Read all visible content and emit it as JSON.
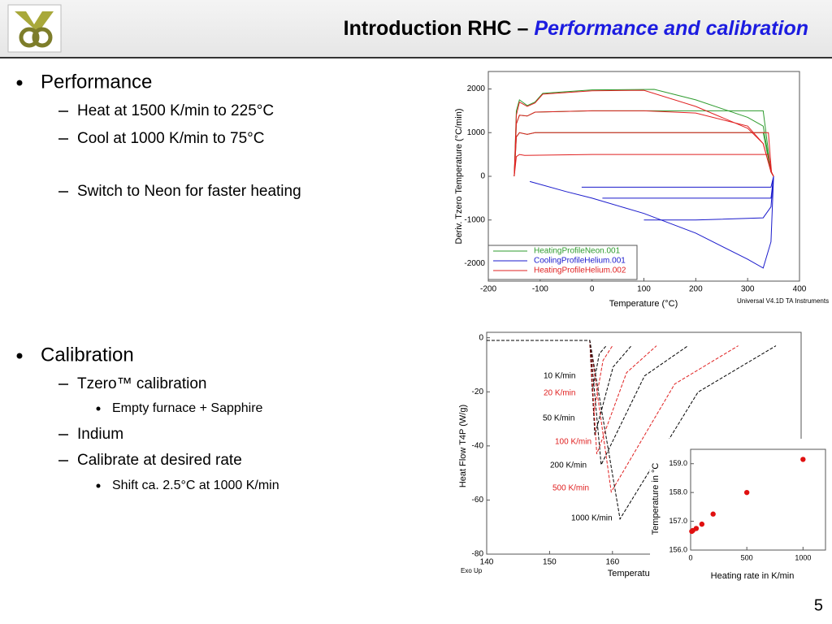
{
  "header": {
    "title": "Introduction RHC – ",
    "title_emphasis": "Performance and calibration"
  },
  "page_number": "5",
  "bullets": [
    {
      "text": "Performance",
      "items": [
        {
          "text": "Heat at 1500 K/min to 225°C"
        },
        {
          "text": "Cool at 1000 K/min to 75°C"
        },
        {
          "text": "Switch to Neon for faster heating"
        }
      ]
    },
    {
      "text": "Calibration",
      "items": [
        {
          "text": "Tzero™ calibration",
          "items": [
            "Empty furnace + Sapphire"
          ]
        },
        {
          "text": "Indium"
        },
        {
          "text": "Calibrate at desired rate",
          "items": [
            "Shift ca. 2.5°C at 1000 K/min"
          ]
        }
      ]
    }
  ],
  "chart_data": [
    {
      "type": "line",
      "ylabel": "Deriv. Tzero Temperature (°C/min)",
      "xlabel": "Temperature (°C)",
      "note": "Universal V4.1D TA Instruments",
      "xlim": [
        -200,
        400
      ],
      "ylim": [
        -2400,
        2400
      ],
      "xticks": [
        -200,
        -100,
        0,
        100,
        200,
        300,
        400
      ],
      "yticks": [
        -2000,
        -1000,
        0,
        1000,
        2000
      ],
      "legend": "lower left",
      "series": [
        {
          "name": "HeatingProfileNeon.001",
          "color": "#2e9b2e",
          "curves": [
            {
              "x": [
                -150,
                -146,
                -140,
                -125,
                -110,
                -95,
                0,
                120,
                200,
                300,
                330,
                345,
                350
              ],
              "values": [
                0,
                1500,
                1750,
                1620,
                1700,
                1900,
                1980,
                1990,
                1750,
                1350,
                1150,
                100,
                0
              ]
            },
            {
              "x": [
                -150,
                -146,
                -140,
                -125,
                -110,
                0,
                100,
                200,
                330,
                345,
                350
              ],
              "values": [
                0,
                1200,
                1400,
                1380,
                1470,
                1500,
                1500,
                1500,
                1500,
                100,
                0
              ]
            },
            {
              "x": [
                -150,
                -146,
                -140,
                -125,
                -110,
                0,
                100,
                200,
                330,
                345,
                350
              ],
              "values": [
                0,
                900,
                1000,
                960,
                1000,
                1000,
                1000,
                1000,
                1000,
                100,
                0
              ]
            }
          ]
        },
        {
          "name": "CoolingProfileHelium.001",
          "color": "#1a1acc",
          "curves": [
            {
              "x": [
                -120,
                -50,
                0,
                100,
                200,
                300,
                330,
                345,
                350
              ],
              "values": [
                -120,
                -350,
                -500,
                -850,
                -1300,
                -1900,
                -2100,
                -1500,
                0
              ]
            },
            {
              "x": [
                100,
                200,
                330,
                345,
                350
              ],
              "values": [
                -1000,
                -1000,
                -950,
                -700,
                0
              ]
            },
            {
              "x": [
                20,
                200,
                345,
                350
              ],
              "values": [
                -500,
                -500,
                -500,
                0
              ]
            },
            {
              "x": [
                -20,
                200,
                345,
                350
              ],
              "values": [
                -250,
                -250,
                -250,
                0
              ]
            }
          ]
        },
        {
          "name": "HeatingProfileHelium.002",
          "color": "#e02020",
          "curves": [
            {
              "x": [
                -150,
                -146,
                -140,
                -125,
                -110,
                -95,
                0,
                100,
                200,
                300,
                330,
                345,
                350
              ],
              "values": [
                0,
                1400,
                1700,
                1600,
                1680,
                1880,
                1960,
                1970,
                1600,
                1100,
                750,
                100,
                0
              ]
            },
            {
              "x": [
                -150,
                -146,
                -140,
                -125,
                -110,
                0,
                100,
                200,
                300,
                330,
                345,
                350
              ],
              "values": [
                0,
                1200,
                1400,
                1380,
                1470,
                1500,
                1500,
                1450,
                1150,
                750,
                100,
                0
              ]
            },
            {
              "x": [
                -150,
                -146,
                -140,
                -125,
                -110,
                0,
                200,
                340,
                346,
                350
              ],
              "values": [
                0,
                900,
                1000,
                960,
                1000,
                1000,
                1000,
                1000,
                100,
                0
              ]
            },
            {
              "x": [
                -150,
                -146,
                -140,
                -130,
                0,
                200,
                340,
                346,
                350
              ],
              "values": [
                0,
                450,
                500,
                480,
                500,
                500,
                500,
                100,
                0
              ]
            }
          ]
        }
      ]
    },
    {
      "type": "line",
      "ylabel": "Heat Flow T4P (W/g)",
      "xlabel": "Temperature (°C)",
      "note": "Exo Up",
      "xlim": [
        140,
        190
      ],
      "ylim": [
        -80,
        2
      ],
      "xticks": [
        140,
        150,
        160
      ],
      "yticks": [
        0,
        -20,
        -40,
        -60,
        -80
      ],
      "dashed": true,
      "series": [
        {
          "name": "10 K/min",
          "color": "#000000",
          "x": [
            140,
            156.4,
            156.8,
            157.9,
            159
          ],
          "values": [
            -1,
            -1,
            -20,
            -6,
            -3
          ]
        },
        {
          "name": "20 K/min",
          "color": "#e02020",
          "x": [
            140,
            156.4,
            157.0,
            158.5,
            160
          ],
          "values": [
            -1,
            -1,
            -28,
            -8.4,
            -3
          ]
        },
        {
          "name": "50 K/min",
          "color": "#000000",
          "x": [
            140,
            156.4,
            157.2,
            160.1,
            163
          ],
          "values": [
            -1,
            -1,
            -36,
            -10.8,
            -3
          ]
        },
        {
          "name": "100 K/min",
          "color": "#e02020",
          "x": [
            140,
            156.4,
            157.5,
            162.25,
            167
          ],
          "values": [
            -1,
            -1,
            -43,
            -12.9,
            -3
          ]
        },
        {
          "name": "200 K/min",
          "color": "#000000",
          "x": [
            140,
            156.4,
            158.2,
            165.1,
            172
          ],
          "values": [
            -1,
            -1,
            -47,
            -14.1,
            -3
          ]
        },
        {
          "name": "500 K/min",
          "color": "#e02020",
          "x": [
            140,
            156.4,
            159.8,
            169.9,
            180
          ],
          "values": [
            -1,
            -1,
            -57,
            -17.1,
            -3
          ]
        },
        {
          "name": "1000 K/min",
          "color": "#000000",
          "x": [
            140,
            156.4,
            161.2,
            173.6,
            186
          ],
          "values": [
            -1,
            -1,
            -67,
            -20.1,
            -3
          ]
        }
      ]
    },
    {
      "type": "scatter",
      "ylabel": "Temperature in °C",
      "xlabel": "Heating rate in K/min",
      "xlim": [
        0,
        1200
      ],
      "ylim": [
        156,
        159.5
      ],
      "xticks": [
        0,
        500,
        1000
      ],
      "yticks": [
        {
          "value": 156,
          "label": "156.0"
        },
        {
          "value": 157,
          "label": "157.0"
        },
        {
          "value": 158,
          "label": "158.0"
        },
        {
          "value": 159,
          "label": "159.0"
        }
      ],
      "color": "#e01010",
      "x": [
        10,
        20,
        50,
        100,
        200,
        500,
        1000
      ],
      "values": [
        156.65,
        156.68,
        156.75,
        156.9,
        157.25,
        158.0,
        159.15
      ]
    }
  ]
}
